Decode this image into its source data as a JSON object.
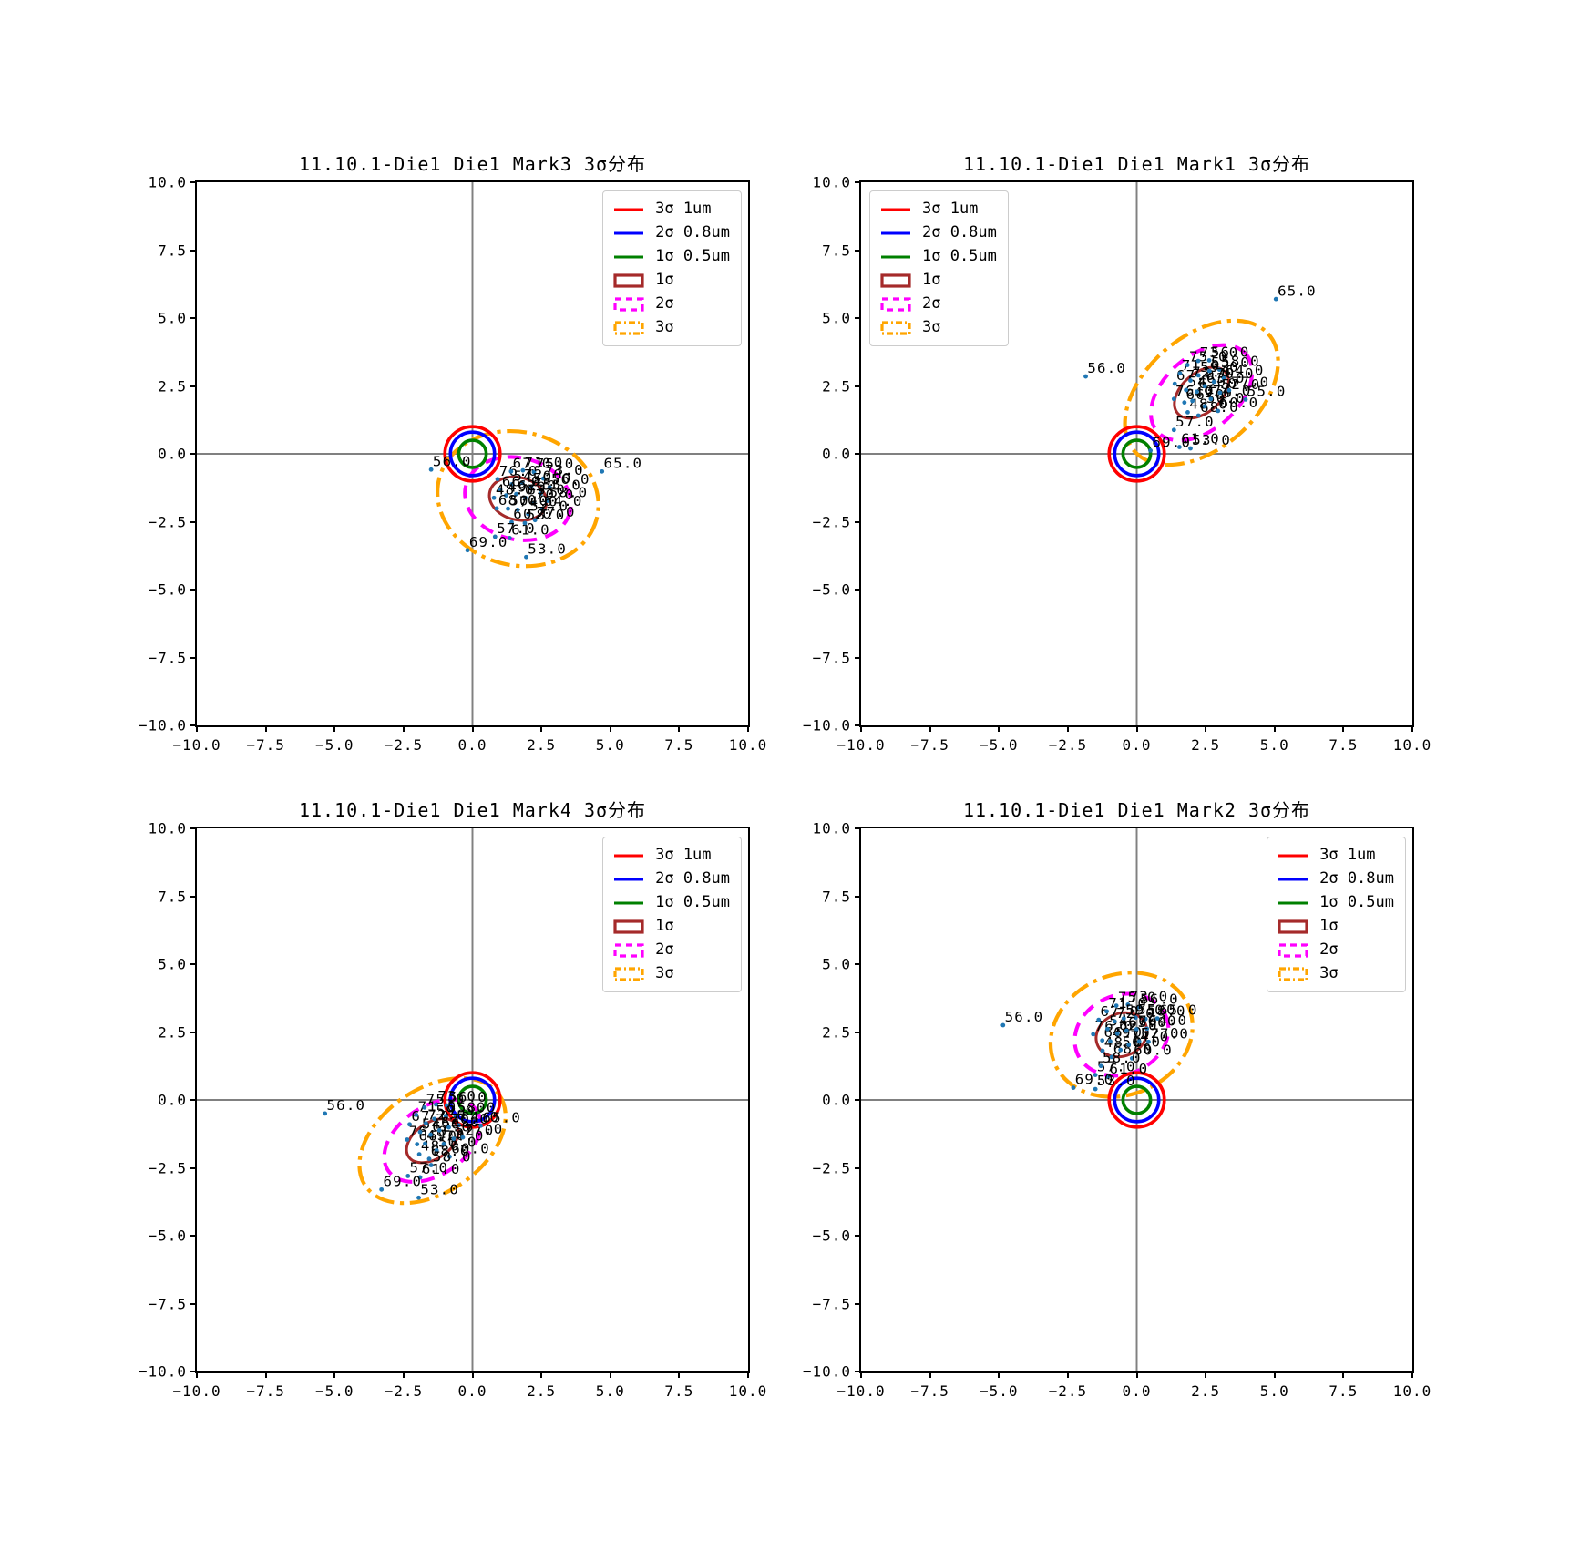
{
  "figure": {
    "background": "#ffffff"
  },
  "colors": {
    "point": "#1f77b4",
    "zero_line": "#808080",
    "tol_3sigma": "#ff0000",
    "tol_2sigma": "#0000ff",
    "tol_1sigma": "#008000",
    "ellipse_1sigma": "#a52a2a",
    "ellipse_2sigma": "#ff00ff",
    "ellipse_3sigma": "#ffa500",
    "text": "#000000"
  },
  "legend": [
    {
      "label": "3σ 1um",
      "color": "#ff0000",
      "style": "line"
    },
    {
      "label": "2σ 0.8um",
      "color": "#0000ff",
      "style": "line"
    },
    {
      "label": "1σ 0.5um",
      "color": "#008000",
      "style": "line"
    },
    {
      "label": "1σ",
      "color": "#a52a2a",
      "style": "patch-solid"
    },
    {
      "label": "2σ",
      "color": "#ff00ff",
      "style": "patch-dashed"
    },
    {
      "label": "3σ",
      "color": "#ffa500",
      "style": "patch-dashdot"
    }
  ],
  "axes": {
    "tick_values": [
      -10,
      -7.5,
      -5,
      -2.5,
      0,
      2.5,
      5,
      7.5,
      10
    ],
    "tick_labels": [
      "−10.0",
      "−7.5",
      "−5.0",
      "−2.5",
      "0.0",
      "2.5",
      "5.0",
      "7.5",
      "10.0"
    ],
    "xlim": [
      -10,
      10
    ],
    "ylim": [
      -10,
      10
    ]
  },
  "tolerance_circles": [
    {
      "label": "3σ 1um",
      "radius": 1.0,
      "color": "#ff0000"
    },
    {
      "label": "2σ 0.8um",
      "radius": 0.8,
      "color": "#0000ff"
    },
    {
      "label": "1σ 0.5um",
      "radius": 0.5,
      "color": "#008000"
    }
  ],
  "ellipse_styles": [
    {
      "sigma": "1σ",
      "color": "#a52a2a",
      "dash": "solid",
      "width": 0.1
    },
    {
      "sigma": "2σ",
      "color": "#ff00ff",
      "dash": "dashed",
      "width": 0.135
    },
    {
      "sigma": "3σ",
      "color": "#ffa500",
      "dash": "dashdot",
      "width": 0.14
    }
  ],
  "chart_data": [
    {
      "type": "scatter",
      "id": "mark3",
      "title": "11.10.1-Die1 Die1 Mark3 3σ分布",
      "legend_loc": "upper-right",
      "xlim": [
        -10,
        10
      ],
      "ylim": [
        -10,
        10
      ],
      "ellipse_center": [
        1.65,
        -1.65
      ],
      "ellipse_rotation_deg": -15,
      "ellipses": [
        {
          "sigma": "1σ",
          "rx": 1.05,
          "ry": 0.78
        },
        {
          "sigma": "2σ",
          "rx": 1.95,
          "ry": 1.5
        },
        {
          "sigma": "3σ",
          "rx": 2.95,
          "ry": 2.45
        }
      ],
      "points": [
        {
          "x": 0.91,
          "y": -0.93,
          "label": "76.0"
        },
        {
          "x": 1.4,
          "y": -0.65,
          "label": "67.0"
        },
        {
          "x": 1.83,
          "y": -0.61,
          "label": "71.0"
        },
        {
          "x": 2.23,
          "y": -0.67,
          "label": "75.0"
        },
        {
          "x": 2.57,
          "y": -0.91,
          "label": "73.0"
        },
        {
          "x": 2.8,
          "y": -1.23,
          "label": "56.0"
        },
        {
          "x": 1.01,
          "y": -1.32,
          "label": "66.0"
        },
        {
          "x": 1.43,
          "y": -1.12,
          "label": "54.0"
        },
        {
          "x": 1.81,
          "y": -1.07,
          "label": "72.0"
        },
        {
          "x": 2.13,
          "y": -1.21,
          "label": "59.0"
        },
        {
          "x": 2.48,
          "y": -1.46,
          "label": "55.0"
        },
        {
          "x": 2.72,
          "y": -1.73,
          "label": "58.0"
        },
        {
          "x": 0.78,
          "y": -1.62,
          "label": "48.0"
        },
        {
          "x": 1.22,
          "y": -1.53,
          "label": "49.0"
        },
        {
          "x": 1.59,
          "y": -1.48,
          "label": "62.0"
        },
        {
          "x": 1.92,
          "y": -1.62,
          "label": "63.0"
        },
        {
          "x": 2.23,
          "y": -1.81,
          "label": "70.0"
        },
        {
          "x": 2.53,
          "y": -2.04,
          "label": "64.0"
        },
        {
          "x": 0.88,
          "y": -2.01,
          "label": "68.0"
        },
        {
          "x": 1.29,
          "y": -2.02,
          "label": "50.0"
        },
        {
          "x": 1.64,
          "y": -2.06,
          "label": "74.0"
        },
        {
          "x": 2.02,
          "y": -2.22,
          "label": "52.0"
        },
        {
          "x": 2.27,
          "y": -2.44,
          "label": "77.0"
        },
        {
          "x": 1.42,
          "y": -2.52,
          "label": "60.0"
        },
        {
          "x": 0.82,
          "y": -3.05,
          "label": "57.0"
        },
        {
          "x": 1.35,
          "y": -3.1,
          "label": "61.0"
        },
        {
          "x": 1.9,
          "y": -2.55,
          "label": "58.0"
        },
        {
          "x": -0.18,
          "y": -3.55,
          "label": "69.0"
        },
        {
          "x": 1.95,
          "y": -3.8,
          "label": "53.0"
        },
        {
          "x": -1.5,
          "y": -0.58,
          "label": "56.0"
        },
        {
          "x": 4.7,
          "y": -0.65,
          "label": "65.0"
        }
      ]
    },
    {
      "type": "scatter",
      "id": "mark1",
      "title": "11.10.1-Die1 Die1 Mark1 3σ分布",
      "legend_loc": "upper-left",
      "xlim": [
        -10,
        10
      ],
      "ylim": [
        -10,
        10
      ],
      "ellipse_center": [
        2.35,
        2.25
      ],
      "ellipse_rotation_deg": 42,
      "ellipses": [
        {
          "sigma": "1σ",
          "rx": 1.15,
          "ry": 0.72
        },
        {
          "sigma": "2σ",
          "rx": 2.15,
          "ry": 1.35
        },
        {
          "sigma": "3σ",
          "rx": 3.25,
          "ry": 2.05
        }
      ],
      "points": [
        {
          "x": 1.35,
          "y": 2.02,
          "label": "76.0"
        },
        {
          "x": 1.38,
          "y": 2.58,
          "label": "67.0"
        },
        {
          "x": 1.57,
          "y": 2.96,
          "label": "71.0"
        },
        {
          "x": 1.84,
          "y": 3.27,
          "label": "75.0"
        },
        {
          "x": 2.23,
          "y": 3.42,
          "label": "73.0"
        },
        {
          "x": 2.63,
          "y": 3.44,
          "label": "56.0"
        },
        {
          "x": 1.73,
          "y": 1.89,
          "label": "66.0"
        },
        {
          "x": 1.79,
          "y": 2.35,
          "label": "54.0"
        },
        {
          "x": 1.95,
          "y": 2.7,
          "label": "72.0"
        },
        {
          "x": 2.24,
          "y": 2.89,
          "label": "59.0"
        },
        {
          "x": 2.64,
          "y": 3.05,
          "label": "55.0"
        },
        {
          "x": 3.0,
          "y": 3.1,
          "label": "58.0"
        },
        {
          "x": 1.85,
          "y": 1.53,
          "label": "48.0"
        },
        {
          "x": 2.02,
          "y": 1.95,
          "label": "49.0"
        },
        {
          "x": 2.18,
          "y": 2.29,
          "label": "62.0"
        },
        {
          "x": 2.47,
          "y": 2.49,
          "label": "63.0"
        },
        {
          "x": 2.8,
          "y": 2.65,
          "label": "70.0"
        },
        {
          "x": 3.16,
          "y": 2.78,
          "label": "64.0"
        },
        {
          "x": 2.24,
          "y": 1.41,
          "label": "68.0"
        },
        {
          "x": 2.47,
          "y": 1.75,
          "label": "50.0"
        },
        {
          "x": 2.69,
          "y": 2.02,
          "label": "74.0"
        },
        {
          "x": 3.02,
          "y": 2.25,
          "label": "52.0"
        },
        {
          "x": 3.35,
          "y": 2.34,
          "label": "77.0"
        },
        {
          "x": 2.95,
          "y": 1.58,
          "label": "60.0"
        },
        {
          "x": 1.35,
          "y": 0.88,
          "label": "57.0"
        },
        {
          "x": 1.55,
          "y": 0.25,
          "label": "61.0"
        },
        {
          "x": 1.95,
          "y": 0.2,
          "label": "53.0"
        },
        {
          "x": 0.5,
          "y": 0.12,
          "label": "69.0"
        },
        {
          "x": -1.85,
          "y": 2.85,
          "label": "56.0"
        },
        {
          "x": 5.05,
          "y": 5.7,
          "label": "65.0"
        },
        {
          "x": 3.95,
          "y": 2.0,
          "label": "55.0"
        }
      ]
    },
    {
      "type": "scatter",
      "id": "mark4",
      "title": "11.10.1-Die1 Die1 Mark4 3σ分布",
      "legend_loc": "upper-right",
      "xlim": [
        -10,
        10
      ],
      "ylim": [
        -10,
        10
      ],
      "ellipse_center": [
        -1.45,
        -1.5
      ],
      "ellipse_rotation_deg": 35,
      "ellipses": [
        {
          "sigma": "1σ",
          "rx": 1.05,
          "ry": 0.66
        },
        {
          "sigma": "2σ",
          "rx": 1.95,
          "ry": 1.25
        },
        {
          "sigma": "3σ",
          "rx": 2.95,
          "ry": 1.9
        }
      ],
      "points": [
        {
          "x": -2.37,
          "y": -1.46,
          "label": "76.0"
        },
        {
          "x": -2.28,
          "y": -0.9,
          "label": "67.0"
        },
        {
          "x": -2.04,
          "y": -0.55,
          "label": "71.0"
        },
        {
          "x": -1.74,
          "y": -0.28,
          "label": "75.0"
        },
        {
          "x": -1.32,
          "y": -0.17,
          "label": "73.0"
        },
        {
          "x": -0.93,
          "y": -0.2,
          "label": "56.0"
        },
        {
          "x": -2.01,
          "y": -1.63,
          "label": "66.0"
        },
        {
          "x": -1.9,
          "y": -1.18,
          "label": "54.0"
        },
        {
          "x": -1.69,
          "y": -0.86,
          "label": "72.0"
        },
        {
          "x": -1.38,
          "y": -0.7,
          "label": "59.0"
        },
        {
          "x": -0.97,
          "y": -0.59,
          "label": "55.0"
        },
        {
          "x": -0.61,
          "y": -0.58,
          "label": "58.0"
        },
        {
          "x": -1.93,
          "y": -2.0,
          "label": "48.0"
        },
        {
          "x": -1.72,
          "y": -1.61,
          "label": "49.0"
        },
        {
          "x": -1.52,
          "y": -1.28,
          "label": "62.0"
        },
        {
          "x": -1.2,
          "y": -1.12,
          "label": "63.0"
        },
        {
          "x": -0.86,
          "y": -1.01,
          "label": "70.0"
        },
        {
          "x": -0.49,
          "y": -0.93,
          "label": "64.0"
        },
        {
          "x": -1.57,
          "y": -2.17,
          "label": "68.0"
        },
        {
          "x": -1.3,
          "y": -1.86,
          "label": "50.0"
        },
        {
          "x": -1.04,
          "y": -1.62,
          "label": "74.0"
        },
        {
          "x": -0.68,
          "y": -1.43,
          "label": "52.0"
        },
        {
          "x": -0.35,
          "y": -1.38,
          "label": "77.0"
        },
        {
          "x": -0.83,
          "y": -2.09,
          "label": "60.0"
        },
        {
          "x": -2.34,
          "y": -2.8,
          "label": "57.0"
        },
        {
          "x": -1.9,
          "y": -2.85,
          "label": "61.0"
        },
        {
          "x": -1.5,
          "y": -2.4,
          "label": "58.0"
        },
        {
          "x": -3.3,
          "y": -3.3,
          "label": "69.0"
        },
        {
          "x": -1.95,
          "y": -3.6,
          "label": "53.0"
        },
        {
          "x": -5.35,
          "y": -0.5,
          "label": "56.0"
        },
        {
          "x": 0.3,
          "y": -0.95,
          "label": "65.0"
        }
      ]
    },
    {
      "type": "scatter",
      "id": "mark2",
      "title": "11.10.1-Die1 Die1 Mark2 3σ分布",
      "legend_loc": "upper-right",
      "xlim": [
        -10,
        10
      ],
      "ylim": [
        -10,
        10
      ],
      "ellipse_center": [
        -0.55,
        2.4
      ],
      "ellipse_rotation_deg": 25,
      "ellipses": [
        {
          "sigma": "1σ",
          "rx": 0.95,
          "ry": 0.78
        },
        {
          "sigma": "2σ",
          "rx": 1.75,
          "ry": 1.45
        },
        {
          "sigma": "3σ",
          "rx": 2.65,
          "ry": 2.2
        }
      ],
      "points": [
        {
          "x": -1.58,
          "y": 2.42,
          "label": "76.0"
        },
        {
          "x": -1.38,
          "y": 2.95,
          "label": "67.0"
        },
        {
          "x": -1.09,
          "y": 3.26,
          "label": "71.0"
        },
        {
          "x": -0.74,
          "y": 3.47,
          "label": "75.0"
        },
        {
          "x": -0.32,
          "y": 3.51,
          "label": "73.0"
        },
        {
          "x": 0.06,
          "y": 3.41,
          "label": "56.0"
        },
        {
          "x": -1.25,
          "y": 2.19,
          "label": "66.0"
        },
        {
          "x": -1.06,
          "y": 2.61,
          "label": "54.0"
        },
        {
          "x": -0.8,
          "y": 2.89,
          "label": "72.0"
        },
        {
          "x": -0.47,
          "y": 3.0,
          "label": "59.0"
        },
        {
          "x": -0.04,
          "y": 3.03,
          "label": "55.0"
        },
        {
          "x": 0.32,
          "y": 2.98,
          "label": "58.0"
        },
        {
          "x": -1.24,
          "y": 1.81,
          "label": "48.0"
        },
        {
          "x": -0.96,
          "y": 2.16,
          "label": "49.0"
        },
        {
          "x": -0.7,
          "y": 2.44,
          "label": "62.0"
        },
        {
          "x": -0.37,
          "y": 2.55,
          "label": "63.0"
        },
        {
          "x": -0.01,
          "y": 2.6,
          "label": "70.0"
        },
        {
          "x": 0.37,
          "y": 2.62,
          "label": "64.0"
        },
        {
          "x": -0.91,
          "y": 1.58,
          "label": "68.0"
        },
        {
          "x": -0.59,
          "y": 1.84,
          "label": "50.0"
        },
        {
          "x": -0.29,
          "y": 2.03,
          "label": "74.0"
        },
        {
          "x": 0.09,
          "y": 2.15,
          "label": "52.0"
        },
        {
          "x": 0.43,
          "y": 2.14,
          "label": "77.0"
        },
        {
          "x": -0.17,
          "y": 1.53,
          "label": "60.0"
        },
        {
          "x": -1.5,
          "y": 0.92,
          "label": "57.0"
        },
        {
          "x": -1.05,
          "y": 0.85,
          "label": "61.0"
        },
        {
          "x": -1.3,
          "y": 1.25,
          "label": "58.0"
        },
        {
          "x": -2.3,
          "y": 0.45,
          "label": "69.0"
        },
        {
          "x": -1.5,
          "y": 0.4,
          "label": "53.0"
        },
        {
          "x": -4.85,
          "y": 2.75,
          "label": "56.0"
        },
        {
          "x": 0.75,
          "y": 3.0,
          "label": "65.0"
        }
      ]
    }
  ]
}
